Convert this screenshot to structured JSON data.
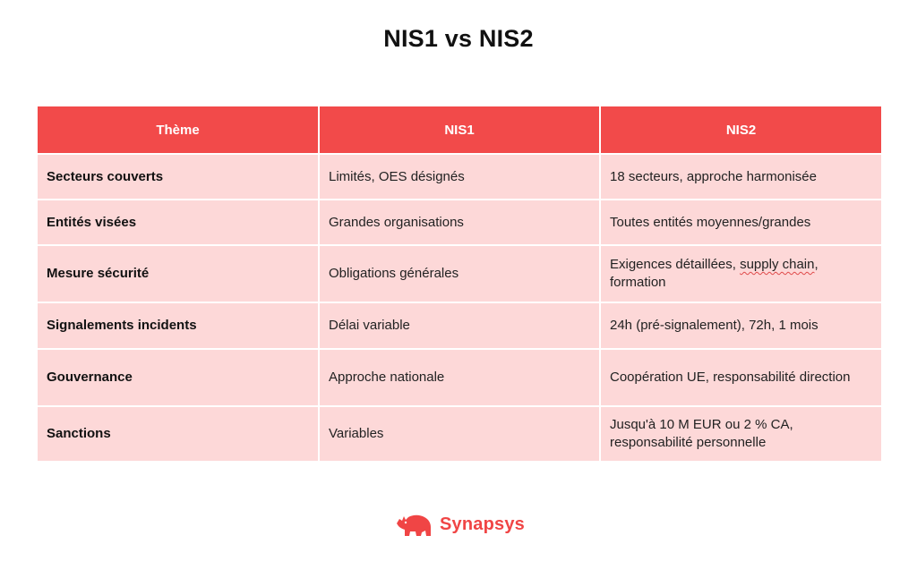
{
  "title": "NIS1 vs NIS2",
  "table": {
    "headers": [
      "Thème",
      "NIS1",
      "NIS2"
    ],
    "rows": [
      {
        "theme": "Secteurs couverts",
        "nis1": "Limités, OES désignés",
        "nis2": "18 secteurs, approche harmonisée"
      },
      {
        "theme": "Entités visées",
        "nis1": "Grandes organisations",
        "nis2": "Toutes entités moyennes/grandes"
      },
      {
        "theme": "Mesure sécurité",
        "nis1": "Obligations générales",
        "nis2_prefix": "Exigences détaillées, ",
        "nis2_underlined": "supply chain",
        "nis2_suffix": ", formation"
      },
      {
        "theme": "Signalements incidents",
        "nis1": "Délai variable",
        "nis2": "24h (pré-signalement), 72h, 1 mois"
      },
      {
        "theme": "Gouvernance",
        "nis1": "Approche nationale",
        "nis2": "Coopération UE, responsabilité direction"
      },
      {
        "theme": "Sanctions",
        "nis1": "Variables",
        "nis2": "Jusqu'à 10 M EUR ou 2 % CA, responsabilité personnelle"
      }
    ]
  },
  "brand": {
    "name": "Synapsys",
    "icon": "rhino-icon",
    "color": "#f04545"
  },
  "colors": {
    "header_bg": "#f24a4a",
    "cell_bg": "#fdd8d8"
  }
}
